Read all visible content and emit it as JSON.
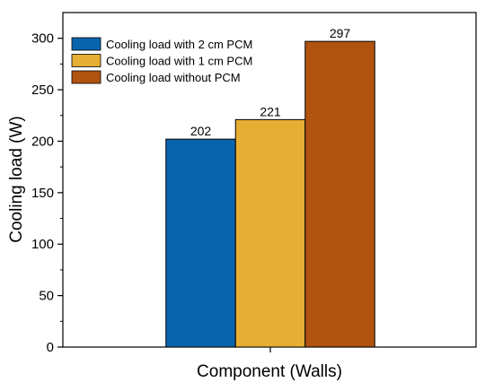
{
  "chart_data": {
    "type": "bar",
    "xlabel": "Component (Walls)",
    "ylabel": "Cooling load (W)",
    "ylim": [
      0,
      325
    ],
    "yticks": [
      0,
      50,
      100,
      150,
      200,
      250,
      300
    ],
    "categories": [
      ""
    ],
    "series": [
      {
        "name": "Cooling load with 2 cm PCM",
        "values": [
          202
        ],
        "color": "#0a64ad"
      },
      {
        "name": "Cooling load with 1 cm PCM",
        "values": [
          221
        ],
        "color": "#e6ae34"
      },
      {
        "name": "Cooling load without PCM",
        "values": [
          297
        ],
        "color": "#b0530f"
      }
    ],
    "data_labels": [
      "202",
      "221",
      "297"
    ],
    "legend_position": "top-left",
    "grid": false
  }
}
